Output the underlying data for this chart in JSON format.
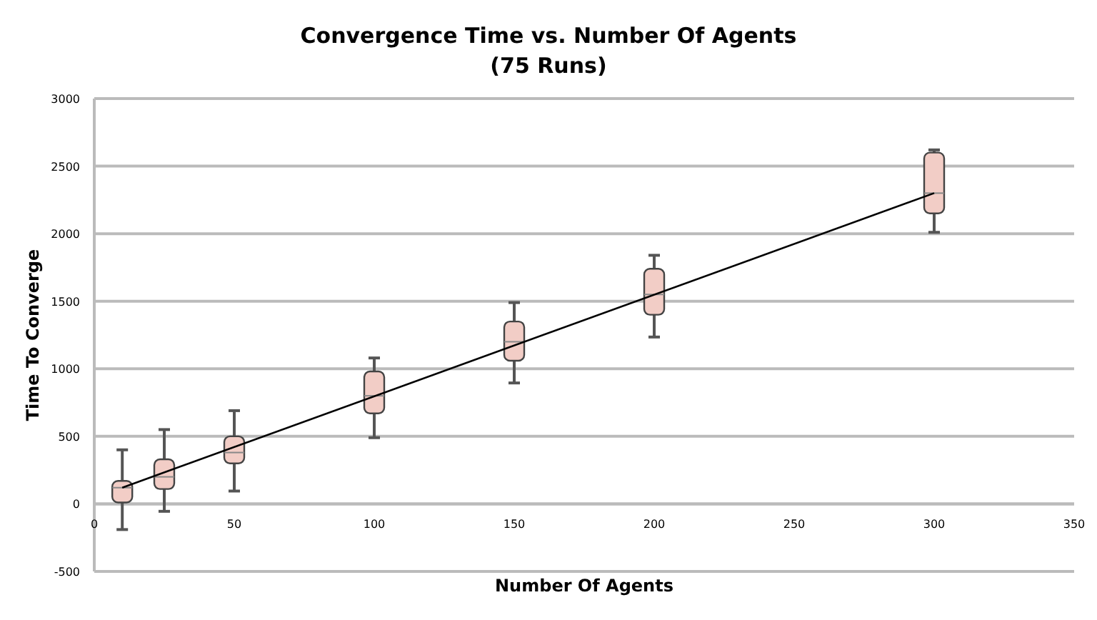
{
  "chart_data": {
    "type": "box",
    "title": "Convergence Time vs. Number Of Agents",
    "subtitle": "(75 Runs)",
    "xlabel": "Number Of Agents",
    "ylabel": "Time To Converge",
    "xlim": [
      0,
      350
    ],
    "xticks": [
      0,
      50,
      100,
      150,
      200,
      250,
      300,
      350
    ],
    "ylim": [
      -500,
      3000
    ],
    "yticks": [
      -500,
      0,
      500,
      1000,
      1500,
      2000,
      2500,
      3000
    ],
    "grid": "y",
    "series": [
      {
        "type": "box",
        "x": [
          10,
          25,
          50,
          100,
          150,
          200,
          300
        ],
        "color": "#f2cdc6",
        "boxes": [
          {
            "low": -190,
            "q1": 10,
            "median": 120,
            "q3": 170,
            "high": 400
          },
          {
            "low": -55,
            "q1": 110,
            "median": 200,
            "q3": 330,
            "high": 550
          },
          {
            "low": 95,
            "q1": 300,
            "median": 380,
            "q3": 500,
            "high": 690
          },
          {
            "low": 490,
            "q1": 670,
            "median": 800,
            "q3": 980,
            "high": 1080
          },
          {
            "low": 895,
            "q1": 1060,
            "median": 1200,
            "q3": 1350,
            "high": 1490
          },
          {
            "low": 1235,
            "q1": 1400,
            "median": 1550,
            "q3": 1740,
            "high": 1840
          },
          {
            "low": 2010,
            "q1": 2150,
            "median": 2300,
            "q3": 2600,
            "high": 2620
          }
        ]
      },
      {
        "type": "line",
        "x": [
          10,
          300
        ],
        "values": [
          120,
          2300
        ],
        "color": "#000000"
      }
    ]
  }
}
